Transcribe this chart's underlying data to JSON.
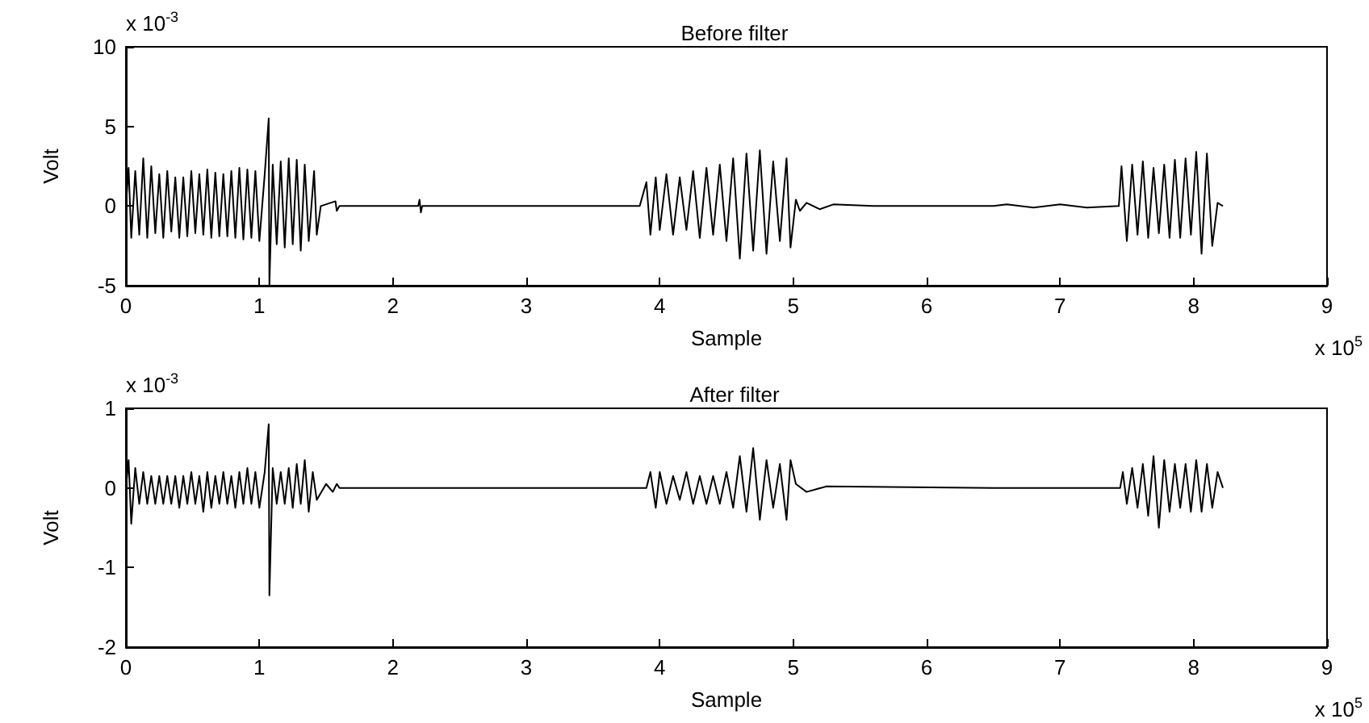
{
  "chart_data": [
    {
      "type": "line",
      "title": "Before filter",
      "xlabel": "Sample",
      "ylabel": "Volt",
      "annotations": [
        "x 10$^{-3}$",
        "x 10$^{5}$"
      ],
      "xlim": [
        0,
        9
      ],
      "xticks": [
        0,
        1,
        2,
        3,
        4,
        5,
        6,
        7,
        8,
        9
      ],
      "ylim": [
        -5,
        10
      ],
      "yticks": [
        -5,
        0,
        5,
        10
      ],
      "grid": false,
      "x": [
        0,
        0.02,
        0.04,
        0.07,
        0.1,
        0.13,
        0.16,
        0.19,
        0.22,
        0.25,
        0.28,
        0.31,
        0.34,
        0.37,
        0.4,
        0.43,
        0.46,
        0.49,
        0.52,
        0.55,
        0.58,
        0.61,
        0.64,
        0.67,
        0.7,
        0.73,
        0.76,
        0.79,
        0.82,
        0.85,
        0.88,
        0.91,
        0.94,
        0.97,
        1.0,
        1.04,
        1.07,
        1.075,
        1.1,
        1.13,
        1.16,
        1.19,
        1.22,
        1.25,
        1.28,
        1.31,
        1.34,
        1.37,
        1.41,
        1.43,
        1.46,
        1.57,
        1.58,
        1.6,
        2.19,
        2.2,
        2.21,
        2.22,
        3.85,
        3.9,
        3.93,
        3.97,
        4.0,
        4.05,
        4.1,
        4.15,
        4.2,
        4.25,
        4.3,
        4.35,
        4.4,
        4.45,
        4.5,
        4.55,
        4.6,
        4.65,
        4.7,
        4.75,
        4.8,
        4.85,
        4.9,
        4.95,
        4.98,
        5.02,
        5.05,
        5.1,
        5.2,
        5.3,
        5.6,
        6.5,
        6.6,
        6.8,
        7.0,
        7.2,
        7.44,
        7.46,
        7.5,
        7.54,
        7.58,
        7.62,
        7.66,
        7.7,
        7.74,
        7.78,
        7.82,
        7.86,
        7.9,
        7.94,
        7.98,
        8.02,
        8.06,
        8.1,
        8.14,
        8.18,
        8.22
      ],
      "series": [
        {
          "color": "#000000",
          "values": [
            0,
            2.4,
            -2.0,
            2.2,
            -1.8,
            3.0,
            -2.0,
            2.5,
            -1.7,
            2.0,
            -2.0,
            2.2,
            -1.6,
            1.8,
            -2.0,
            1.8,
            -1.9,
            2.2,
            -1.7,
            2.0,
            -1.8,
            2.3,
            -2.0,
            2.1,
            -1.9,
            2.0,
            -1.9,
            2.2,
            -2.0,
            2.4,
            -2.1,
            2.3,
            -2.0,
            2.2,
            -2.2,
            2.0,
            5.5,
            -5,
            2.6,
            -2.4,
            2.8,
            -2.6,
            3.0,
            -2.4,
            2.9,
            -2.8,
            2.6,
            -2.2,
            2.2,
            -1.8,
            0,
            0.3,
            -0.3,
            0,
            0,
            0.4,
            -0.4,
            0,
            0,
            1.5,
            -1.8,
            1.8,
            -1.5,
            2.0,
            -1.8,
            1.8,
            -1.5,
            2.2,
            -2.0,
            2.4,
            -1.8,
            2.6,
            -2.2,
            3.0,
            -3.3,
            3.3,
            -2.8,
            3.5,
            -3.0,
            2.8,
            -2.2,
            3.0,
            -2.6,
            0.4,
            -0.3,
            0.2,
            -0.2,
            0.1,
            0,
            0,
            0.1,
            -0.1,
            0.1,
            -0.1,
            0,
            2.5,
            -2.2,
            2.6,
            -1.8,
            2.8,
            -2.0,
            2.4,
            -1.7,
            2.6,
            -2.0,
            2.9,
            -2.0,
            3.0,
            -1.8,
            3.4,
            -3.0,
            3.3,
            -2.5,
            0.2,
            0
          ]
        }
      ]
    },
    {
      "type": "line",
      "title": "After filter",
      "xlabel": "Sample",
      "ylabel": "Volt",
      "annotations": [
        "x 10$^{-3}$",
        "x 10$^{5}$"
      ],
      "xlim": [
        0,
        9
      ],
      "xticks": [
        0,
        1,
        2,
        3,
        4,
        5,
        6,
        7,
        8,
        9
      ],
      "ylim": [
        -2,
        1
      ],
      "yticks": [
        -2,
        -1,
        0,
        1
      ],
      "grid": false,
      "x": [
        0,
        0.02,
        0.04,
        0.07,
        0.1,
        0.13,
        0.16,
        0.19,
        0.22,
        0.25,
        0.28,
        0.31,
        0.34,
        0.37,
        0.4,
        0.43,
        0.46,
        0.49,
        0.52,
        0.55,
        0.58,
        0.61,
        0.64,
        0.67,
        0.7,
        0.73,
        0.76,
        0.79,
        0.82,
        0.85,
        0.88,
        0.91,
        0.94,
        0.97,
        1.0,
        1.04,
        1.07,
        1.075,
        1.1,
        1.13,
        1.16,
        1.19,
        1.22,
        1.25,
        1.28,
        1.31,
        1.34,
        1.37,
        1.4,
        1.43,
        1.5,
        1.55,
        1.58,
        1.6,
        3.9,
        3.93,
        3.97,
        4.0,
        4.05,
        4.1,
        4.15,
        4.2,
        4.25,
        4.3,
        4.35,
        4.4,
        4.45,
        4.5,
        4.55,
        4.6,
        4.65,
        4.7,
        4.75,
        4.8,
        4.85,
        4.9,
        4.95,
        4.98,
        5.02,
        5.1,
        5.25,
        6.5,
        7.45,
        7.47,
        7.5,
        7.54,
        7.58,
        7.62,
        7.66,
        7.7,
        7.74,
        7.78,
        7.82,
        7.86,
        7.9,
        7.94,
        7.98,
        8.02,
        8.06,
        8.1,
        8.14,
        8.18,
        8.22
      ],
      "series": [
        {
          "color": "#000000",
          "values": [
            0,
            0.35,
            -0.45,
            0.25,
            -0.2,
            0.2,
            -0.2,
            0.15,
            -0.2,
            0.15,
            -0.2,
            0.15,
            -0.2,
            0.15,
            -0.25,
            0.15,
            -0.2,
            0.2,
            -0.2,
            0.15,
            -0.3,
            0.2,
            -0.25,
            0.15,
            -0.2,
            0.2,
            -0.2,
            0.15,
            -0.25,
            0.2,
            -0.2,
            0.25,
            -0.2,
            0.2,
            -0.25,
            0.2,
            0.8,
            -1.35,
            0.25,
            -0.2,
            0.2,
            -0.2,
            0.25,
            -0.25,
            0.3,
            -0.2,
            0.35,
            -0.3,
            0.2,
            -0.15,
            0.05,
            -0.05,
            0.05,
            0,
            0,
            0.2,
            -0.25,
            0.2,
            -0.2,
            0.15,
            -0.15,
            0.2,
            -0.2,
            0.15,
            -0.2,
            0.15,
            -0.2,
            0.2,
            -0.25,
            0.4,
            -0.3,
            0.5,
            -0.4,
            0.35,
            -0.25,
            0.3,
            -0.4,
            0.35,
            0.05,
            -0.05,
            0.02,
            0,
            0,
            0.2,
            -0.2,
            0.25,
            -0.25,
            0.3,
            -0.35,
            0.4,
            -0.5,
            0.35,
            -0.3,
            0.3,
            -0.25,
            0.3,
            -0.3,
            0.35,
            -0.3,
            0.3,
            -0.25,
            0.2,
            0
          ]
        }
      ]
    }
  ]
}
